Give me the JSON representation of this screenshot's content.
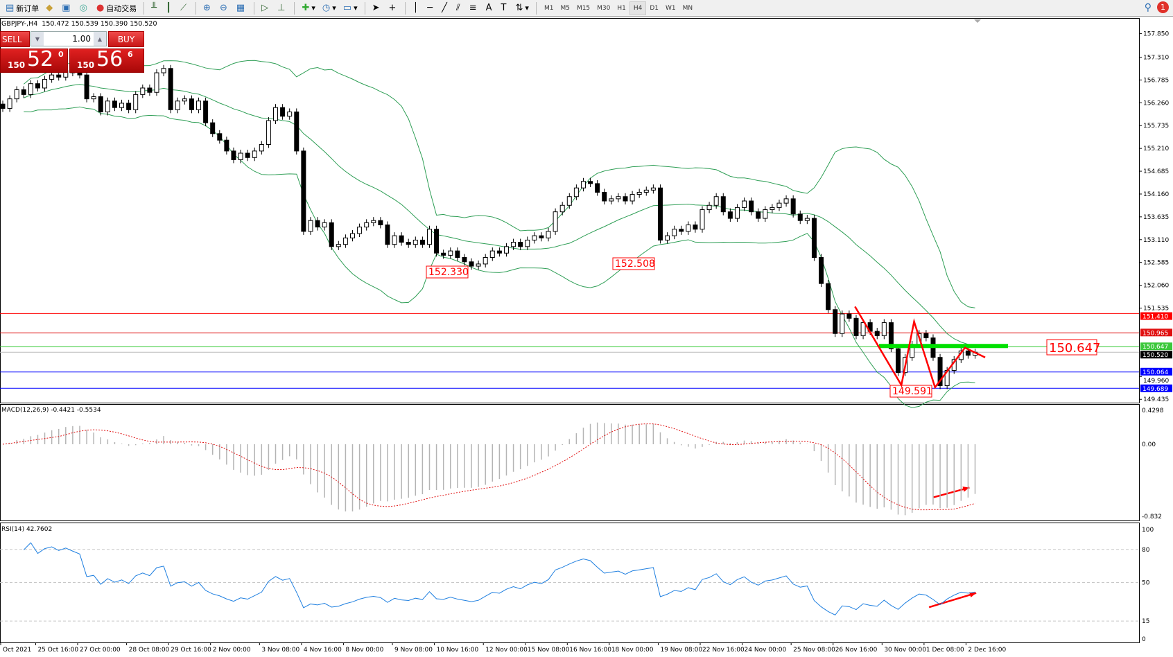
{
  "toolbar": {
    "new_order": "新订单",
    "auto_trading": "自动交易",
    "timeframes": [
      "M1",
      "M5",
      "M15",
      "M30",
      "H1",
      "H4",
      "D1",
      "W1",
      "MN"
    ],
    "active_timeframe": "H4",
    "notification_count": "1"
  },
  "header": {
    "symbol": "GBPJPY-,H4",
    "ohlc": "150.472 150.539 150.390 150.520"
  },
  "one_click": {
    "sell_label": "SELL",
    "buy_label": "BUY",
    "quantity": "1.00",
    "sell_small": "150",
    "sell_big": "52",
    "sell_tiny": "0",
    "buy_small": "150",
    "buy_big": "56",
    "buy_tiny": "6"
  },
  "macd_label": "MACD(12,26,9) -0.4421 -0.5534",
  "rsi_label": "RSI(14) 42.7602",
  "colors": {
    "bands": "#2e9e55",
    "macd_hist": "#b4b4b4",
    "macd_signal": "#e01010",
    "rsi": "#1e7fe0",
    "annotation": "#ff0000",
    "level_green": "#00e000"
  },
  "chart_data": [
    {
      "type": "candlestick",
      "symbol": "GBPJPY",
      "timeframe": "H4",
      "ylim": [
        149.435,
        157.85
      ],
      "y_ticks": [
        "157.850",
        "157.310",
        "156.785",
        "156.260",
        "155.735",
        "155.210",
        "154.685",
        "154.160",
        "153.635",
        "153.110",
        "152.585",
        "152.060",
        "151.535",
        "149.960",
        "149.435"
      ],
      "x_tick_labels": [
        "Oct 2021",
        "25 Oct 16:00",
        "27 Oct 00:00",
        "28 Oct 08:00",
        "29 Oct 16:00",
        "2 Nov 00:00",
        "3 Nov 08:00",
        "4 Nov 16:00",
        "8 Nov 00:00",
        "9 Nov 08:00",
        "10 Nov 16:00",
        "12 Nov 00:00",
        "15 Nov 08:00",
        "16 Nov 16:00",
        "18 Nov 00:00",
        "19 Nov 08:00",
        "22 Nov 16:00",
        "24 Nov 00:00",
        "25 Nov 08:00",
        "26 Nov 16:00",
        "30 Nov 00:00",
        "1 Dec 08:00",
        "2 Dec 16:00"
      ],
      "close": [
        156.13,
        156.35,
        156.56,
        156.45,
        156.7,
        156.6,
        156.8,
        156.9,
        156.85,
        157.0,
        156.95,
        156.9,
        156.35,
        156.4,
        156.05,
        156.3,
        156.15,
        156.25,
        156.1,
        156.45,
        156.6,
        156.5,
        156.95,
        157.05,
        156.1,
        156.3,
        156.35,
        156.1,
        156.3,
        155.8,
        155.55,
        155.4,
        155.15,
        154.95,
        155.1,
        155.0,
        155.15,
        155.3,
        155.85,
        156.15,
        155.95,
        156.05,
        155.15,
        153.3,
        153.55,
        153.4,
        153.5,
        152.95,
        153.0,
        153.15,
        153.25,
        153.4,
        153.5,
        153.55,
        153.45,
        153.0,
        153.2,
        153.05,
        153.0,
        153.1,
        153.0,
        153.35,
        152.8,
        152.75,
        152.85,
        152.7,
        152.6,
        152.5,
        152.55,
        152.7,
        152.85,
        152.8,
        152.95,
        153.05,
        152.95,
        153.1,
        153.2,
        153.15,
        153.3,
        153.75,
        153.9,
        154.1,
        154.3,
        154.45,
        154.4,
        154.2,
        154.0,
        154.05,
        154.1,
        154.0,
        154.15,
        154.2,
        154.25,
        154.3,
        153.1,
        153.2,
        153.35,
        153.3,
        153.45,
        153.35,
        153.8,
        153.9,
        154.1,
        153.75,
        153.6,
        153.85,
        154.0,
        153.75,
        153.6,
        153.8,
        153.85,
        153.95,
        154.05,
        153.7,
        153.55,
        153.6,
        152.7,
        152.1,
        151.5,
        150.95,
        151.4,
        151.3,
        150.9,
        151.2,
        151.0,
        150.9,
        151.2,
        150.6,
        150.05,
        150.4,
        150.7,
        150.95,
        150.85,
        150.4,
        149.75,
        150.1,
        150.35,
        150.55,
        150.45,
        150.52
      ],
      "indicators": [
        "Bollinger Bands(20,2)"
      ],
      "horizontal_levels": [
        {
          "value": "151.410",
          "color": "#ff0000"
        },
        {
          "value": "150.965",
          "color": "#e01010"
        },
        {
          "value": "150.647",
          "color": "#2ec82e"
        },
        {
          "value": "150.520",
          "color": "#000000",
          "type": "bid"
        },
        {
          "value": "150.064",
          "color": "#0000ff"
        },
        {
          "value": "149.689",
          "color": "#0000ff"
        }
      ],
      "annotations": [
        "152.330",
        "152.508",
        "149.591",
        "150.647"
      ]
    },
    {
      "type": "bar+line",
      "name": "MACD(12,26,9)",
      "ylim": [
        -0.832,
        0.4298
      ],
      "y_ticks": [
        "0.4298",
        "0.00",
        "-0.832"
      ]
    },
    {
      "type": "line",
      "name": "RSI(14)",
      "ylim": [
        0,
        100
      ],
      "y_ticks": [
        "100",
        "80",
        "50",
        "15",
        "0"
      ],
      "levels": [
        80,
        50,
        15
      ]
    }
  ]
}
